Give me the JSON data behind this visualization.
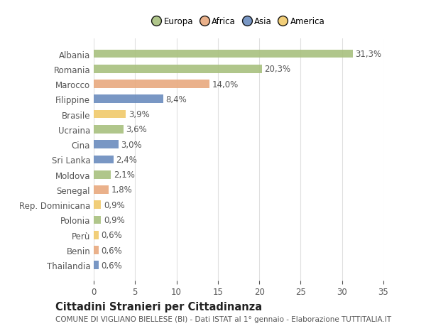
{
  "categories": [
    "Albania",
    "Romania",
    "Marocco",
    "Filippine",
    "Brasile",
    "Ucraina",
    "Cina",
    "Sri Lanka",
    "Moldova",
    "Senegal",
    "Rep. Dominicana",
    "Polonia",
    "Perù",
    "Benin",
    "Thailandia"
  ],
  "values": [
    31.3,
    20.3,
    14.0,
    8.4,
    3.9,
    3.6,
    3.0,
    2.4,
    2.1,
    1.8,
    0.9,
    0.9,
    0.6,
    0.6,
    0.6
  ],
  "labels": [
    "31,3%",
    "20,3%",
    "14,0%",
    "8,4%",
    "3,9%",
    "3,6%",
    "3,0%",
    "2,4%",
    "2,1%",
    "1,8%",
    "0,9%",
    "0,9%",
    "0,6%",
    "0,6%",
    "0,6%"
  ],
  "continents": [
    "Europa",
    "Europa",
    "Africa",
    "Asia",
    "America",
    "Europa",
    "Asia",
    "Asia",
    "Europa",
    "Africa",
    "America",
    "Europa",
    "America",
    "Africa",
    "Asia"
  ],
  "continent_colors": {
    "Europa": "#a8c07e",
    "Africa": "#e8a97e",
    "Asia": "#6b8cbe",
    "America": "#f0c96a"
  },
  "legend_order": [
    "Europa",
    "Africa",
    "Asia",
    "America"
  ],
  "xlim": [
    0,
    35
  ],
  "xticks": [
    0,
    5,
    10,
    15,
    20,
    25,
    30,
    35
  ],
  "title": "Cittadini Stranieri per Cittadinanza",
  "subtitle": "COMUNE DI VIGLIANO BIELLESE (BI) - Dati ISTAT al 1° gennaio - Elaborazione TUTTITALIA.IT",
  "background_color": "#ffffff",
  "grid_color": "#e0e0e0",
  "text_color": "#555555",
  "label_fontsize": 8.5,
  "title_fontsize": 10.5,
  "subtitle_fontsize": 7.5
}
